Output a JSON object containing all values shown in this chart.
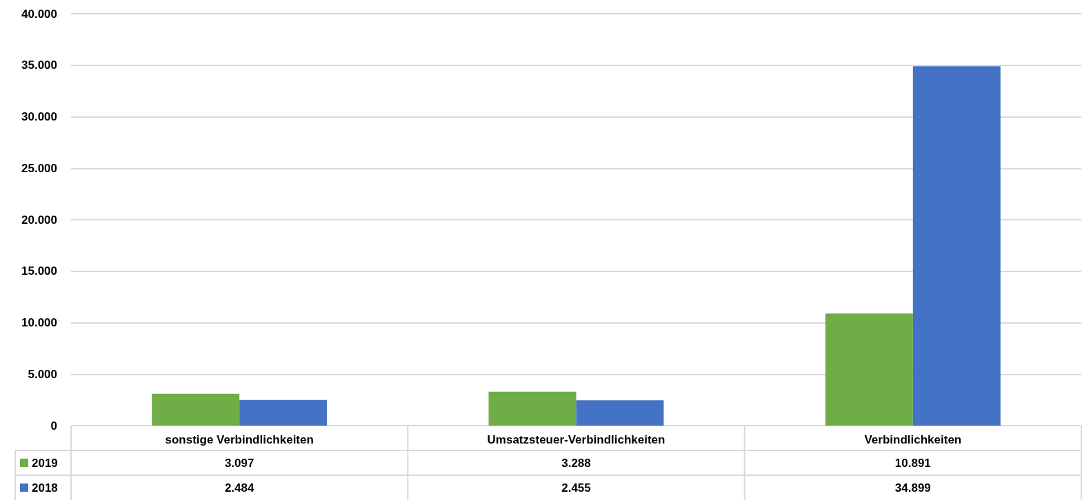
{
  "chart_data": {
    "type": "bar",
    "categories": [
      "sonstige Verbindlichkeiten",
      "Umsatzsteuer-Verbindlichkeiten",
      "Verbindlichkeiten"
    ],
    "series": [
      {
        "name": "2019",
        "color": "#70ad47",
        "values": [
          3097,
          3288,
          10891
        ],
        "value_labels": [
          "3.097",
          "3.288",
          "10.891"
        ]
      },
      {
        "name": "2018",
        "color": "#4472c4",
        "values": [
          2484,
          2455,
          34899
        ],
        "value_labels": [
          "2.484",
          "2.455",
          "34.899"
        ]
      }
    ],
    "ylim": [
      0,
      40000
    ],
    "yticks": [
      0,
      {
        "value": 5000,
        "label": "5.000"
      },
      {
        "value": 10000,
        "label": "10.000"
      },
      {
        "value": 15000,
        "label": "15.000"
      },
      {
        "value": 20000,
        "label": "20.000"
      },
      {
        "value": 25000,
        "label": "25.000"
      },
      {
        "value": 30000,
        "label": "30.000"
      },
      {
        "value": 35000,
        "label": "35.000"
      },
      {
        "value": 40000,
        "label": "40.000"
      }
    ],
    "grid": "y",
    "legend": "bottom left"
  }
}
